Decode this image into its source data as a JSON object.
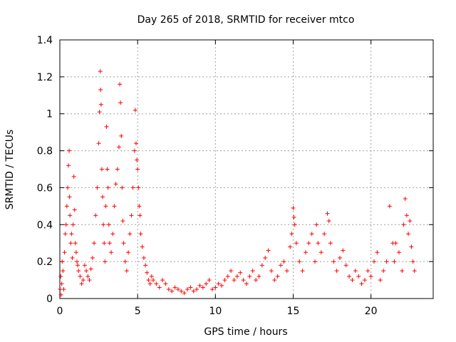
{
  "chart_data": {
    "type": "scatter",
    "title": "Day 265 of 2018, SRMTID for receiver mtco",
    "xlabel": "GPS time / hours",
    "ylabel": "SRMTID / TECUs",
    "xlim": [
      0,
      24
    ],
    "ylim": [
      0,
      1.4
    ],
    "xticks": [
      0,
      5,
      10,
      15,
      20
    ],
    "xtick_labels": [
      "0",
      "5",
      "10",
      "15",
      "20"
    ],
    "yticks": [
      0,
      0.2,
      0.4,
      0.6,
      0.8,
      1.0,
      1.2,
      1.4
    ],
    "ytick_labels": [
      "0",
      "0.2",
      "0.4",
      "0.6",
      "0.8",
      "1",
      "1.2",
      "1.4"
    ],
    "grid": true,
    "marker": "+",
    "color": "#ff0000",
    "series": [
      {
        "name": "SRMTID",
        "x": [
          0.02,
          0.05,
          0.08,
          0.12,
          0.15,
          0.2,
          0.25,
          0.3,
          0.35,
          0.4,
          0.45,
          0.5,
          0.55,
          0.6,
          0.62,
          0.65,
          0.7,
          0.75,
          0.8,
          0.85,
          0.9,
          0.95,
          1.0,
          1.05,
          1.1,
          1.15,
          1.2,
          1.3,
          1.4,
          1.5,
          1.6,
          1.7,
          1.8,
          1.9,
          2.0,
          2.1,
          2.2,
          2.3,
          2.4,
          2.5,
          2.55,
          2.6,
          2.62,
          2.65,
          2.7,
          2.75,
          2.8,
          2.85,
          2.9,
          2.95,
          3.0,
          3.05,
          3.1,
          3.15,
          3.2,
          3.3,
          3.4,
          3.5,
          3.6,
          3.7,
          3.8,
          3.85,
          3.9,
          3.95,
          4.0,
          4.05,
          4.1,
          4.2,
          4.3,
          4.4,
          4.5,
          4.6,
          4.7,
          4.8,
          4.85,
          4.9,
          4.95,
          5.0,
          5.05,
          5.1,
          5.15,
          5.2,
          5.3,
          5.4,
          5.5,
          5.6,
          5.7,
          5.8,
          5.9,
          6.0,
          6.2,
          6.4,
          6.6,
          6.8,
          7.0,
          7.2,
          7.4,
          7.6,
          7.8,
          8.0,
          8.2,
          8.4,
          8.6,
          8.8,
          9.0,
          9.2,
          9.4,
          9.6,
          9.8,
          10.0,
          10.2,
          10.4,
          10.6,
          10.8,
          11.0,
          11.2,
          11.4,
          11.6,
          11.8,
          12.0,
          12.2,
          12.4,
          12.6,
          12.8,
          13.0,
          13.2,
          13.4,
          13.6,
          13.8,
          14.0,
          14.2,
          14.4,
          14.6,
          14.8,
          14.9,
          15.0,
          15.05,
          15.1,
          15.2,
          15.4,
          15.6,
          15.8,
          16.0,
          16.2,
          16.4,
          16.5,
          16.6,
          16.8,
          17.0,
          17.2,
          17.3,
          17.4,
          17.6,
          17.8,
          18.0,
          18.2,
          18.4,
          18.6,
          18.8,
          19.0,
          19.2,
          19.4,
          19.6,
          19.8,
          20.0,
          20.2,
          20.4,
          20.6,
          20.8,
          21.0,
          21.2,
          21.4,
          21.5,
          21.6,
          21.8,
          22.0,
          22.1,
          22.2,
          22.3,
          22.4,
          22.5,
          22.6,
          22.7,
          22.8
        ],
        "y": [
          0.05,
          0.12,
          0.02,
          0.08,
          0.2,
          0.15,
          0.05,
          0.25,
          0.35,
          0.4,
          0.5,
          0.6,
          0.72,
          0.8,
          0.55,
          0.45,
          0.3,
          0.35,
          0.22,
          0.4,
          0.66,
          0.48,
          0.3,
          0.25,
          0.2,
          0.18,
          0.15,
          0.12,
          0.08,
          0.1,
          0.18,
          0.15,
          0.12,
          0.1,
          0.16,
          0.22,
          0.3,
          0.45,
          0.6,
          0.84,
          1.01,
          1.23,
          1.13,
          1.05,
          0.7,
          0.55,
          0.4,
          0.3,
          0.2,
          0.5,
          0.93,
          0.7,
          0.6,
          0.4,
          0.3,
          0.25,
          0.35,
          0.5,
          0.62,
          0.7,
          0.82,
          1.16,
          1.06,
          0.88,
          0.6,
          0.42,
          0.3,
          0.2,
          0.15,
          0.25,
          0.35,
          0.45,
          0.6,
          0.8,
          1.02,
          0.84,
          0.75,
          0.7,
          0.6,
          0.5,
          0.45,
          0.35,
          0.28,
          0.22,
          0.18,
          0.14,
          0.1,
          0.08,
          0.12,
          0.1,
          0.08,
          0.06,
          0.1,
          0.08,
          0.05,
          0.04,
          0.06,
          0.05,
          0.04,
          0.03,
          0.05,
          0.06,
          0.04,
          0.05,
          0.07,
          0.06,
          0.08,
          0.1,
          0.05,
          0.06,
          0.08,
          0.07,
          0.1,
          0.12,
          0.15,
          0.1,
          0.12,
          0.14,
          0.1,
          0.08,
          0.12,
          0.15,
          0.1,
          0.12,
          0.18,
          0.22,
          0.26,
          0.15,
          0.1,
          0.12,
          0.18,
          0.2,
          0.15,
          0.28,
          0.35,
          0.49,
          0.44,
          0.4,
          0.3,
          0.2,
          0.15,
          0.25,
          0.3,
          0.35,
          0.2,
          0.4,
          0.3,
          0.25,
          0.35,
          0.46,
          0.42,
          0.3,
          0.2,
          0.15,
          0.22,
          0.26,
          0.18,
          0.12,
          0.1,
          0.15,
          0.12,
          0.08,
          0.1,
          0.15,
          0.12,
          0.2,
          0.25,
          0.1,
          0.15,
          0.2,
          0.5,
          0.3,
          0.2,
          0.3,
          0.25,
          0.15,
          0.4,
          0.54,
          0.45,
          0.35,
          0.42,
          0.28,
          0.2,
          0.15
        ]
      }
    ]
  }
}
